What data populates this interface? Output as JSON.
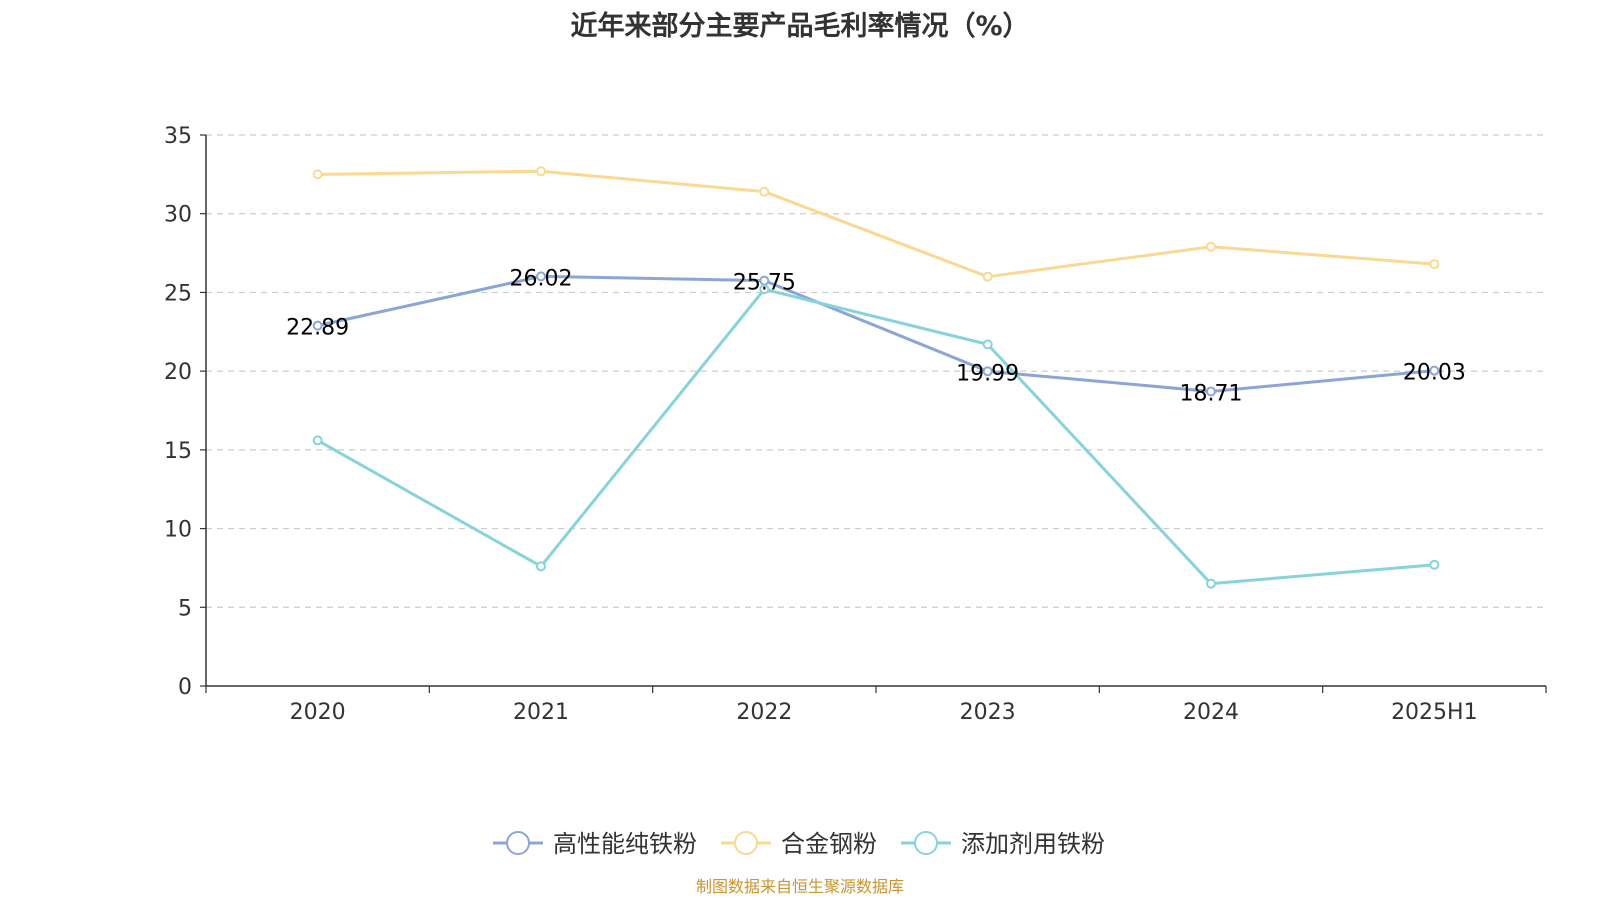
{
  "chart_data": {
    "type": "line",
    "title": "近年来部分主要产品毛利率情况（%）",
    "xlabel": "",
    "ylabel": "",
    "categories": [
      "2020",
      "2021",
      "2022",
      "2023",
      "2024",
      "2025H1"
    ],
    "ylim": [
      0,
      35
    ],
    "yticks": [
      0,
      5,
      10,
      15,
      20,
      25,
      30,
      35
    ],
    "grid": true,
    "legend_position": "bottom",
    "series": [
      {
        "name": "高性能纯铁粉",
        "color": "#8ba6d6",
        "values": [
          22.89,
          26.02,
          25.75,
          19.99,
          18.71,
          20.03
        ],
        "labels": [
          "22.89",
          "26.02",
          "25.75",
          "19.99",
          "18.71",
          "20.03"
        ],
        "show_labels": true
      },
      {
        "name": "合金钢粉",
        "color": "#fad892",
        "values": [
          32.5,
          32.7,
          31.4,
          26.0,
          27.9,
          26.8
        ],
        "show_labels": false
      },
      {
        "name": "添加剂用铁粉",
        "color": "#87d3d9",
        "values": [
          15.6,
          7.6,
          25.2,
          21.7,
          6.5,
          7.7
        ],
        "show_labels": false
      }
    ]
  },
  "footer": {
    "source": "制图数据来自恒生聚源数据库"
  }
}
